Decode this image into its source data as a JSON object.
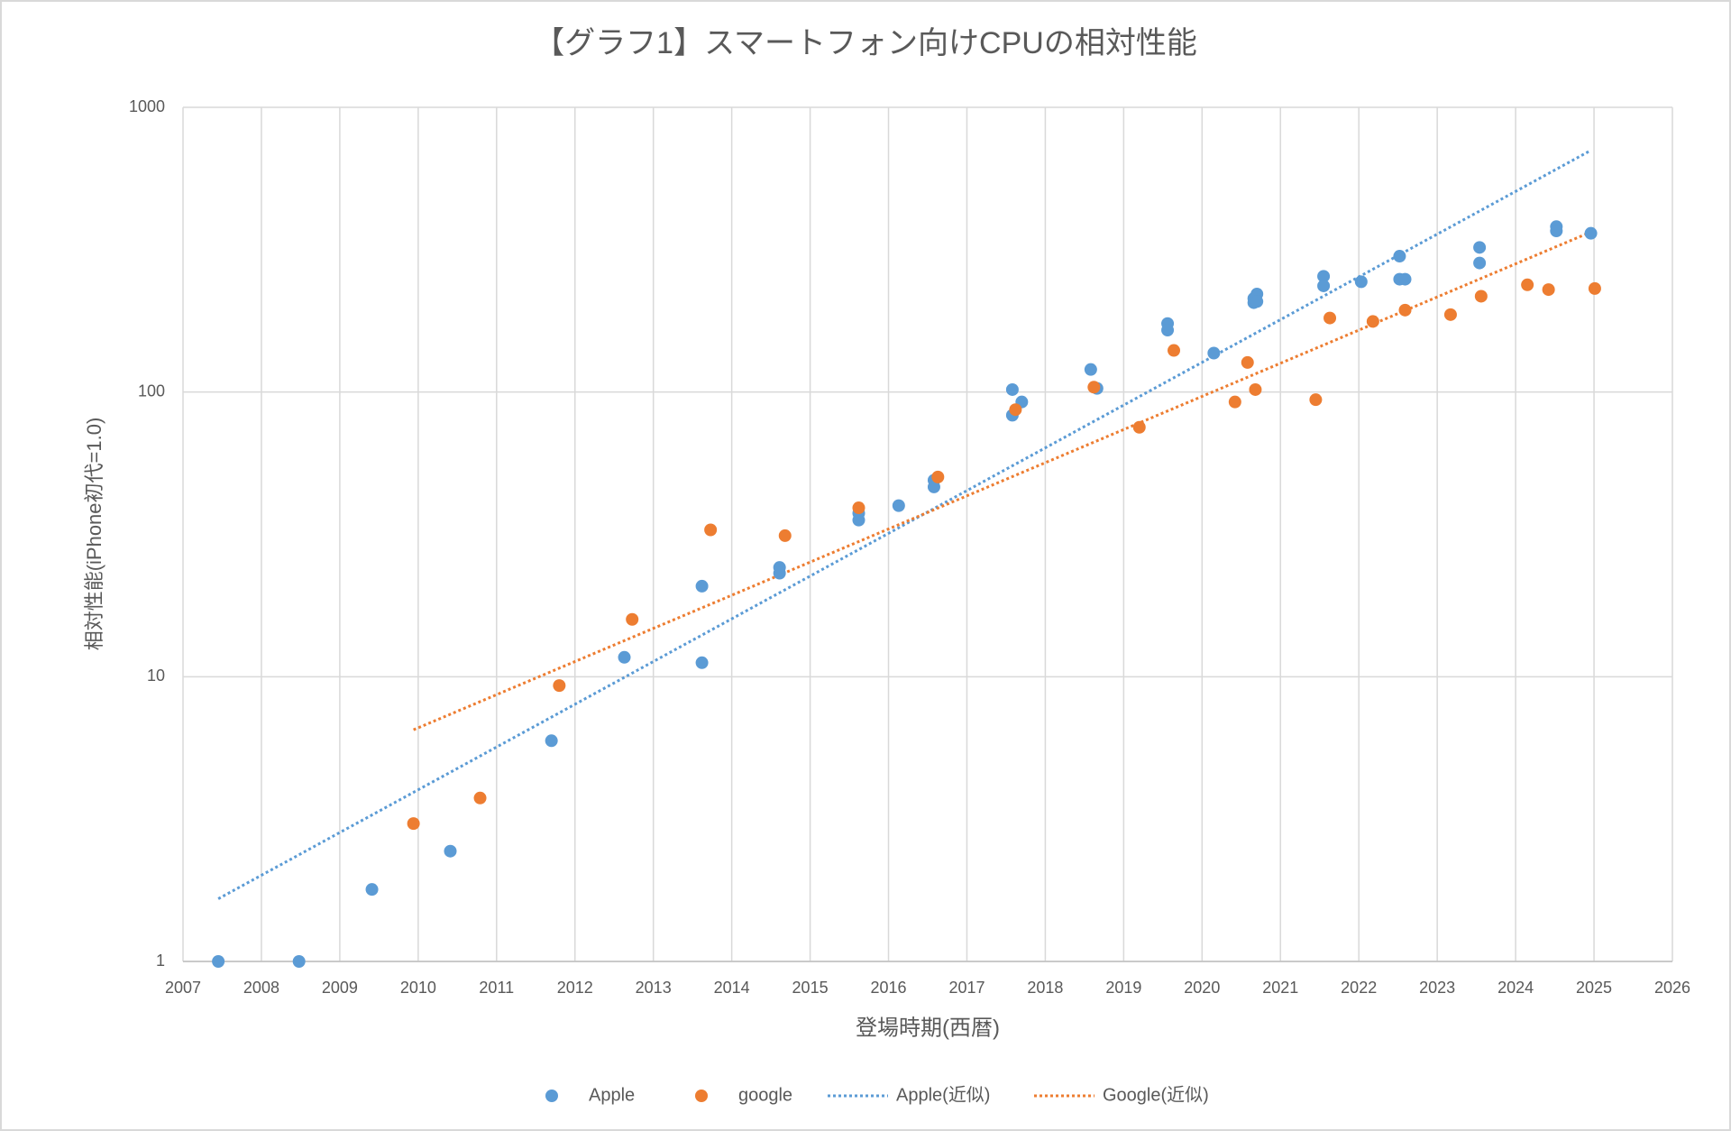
{
  "chart_data": {
    "type": "scatter",
    "title": "【グラフ1】スマートフォン向けCPUの相対性能",
    "x_label": "登場時期(西暦)",
    "y_label": "相対性能(iPhone初代=1.0)",
    "xlim": [
      2007,
      2026
    ],
    "xticks": [
      2007,
      2008,
      2009,
      2010,
      2011,
      2012,
      2013,
      2014,
      2015,
      2016,
      2017,
      2018,
      2019,
      2020,
      2021,
      2022,
      2023,
      2024,
      2025,
      2026
    ],
    "ylim": [
      1,
      1000
    ],
    "yticks": [
      1,
      10,
      100,
      1000
    ],
    "log_y": true,
    "grid": true,
    "legend": "bottom",
    "series": [
      {
        "name": "Apple",
        "type": "scatter",
        "color": "#5b9bd5",
        "x": [
          2007.45,
          2008.48,
          2009.41,
          2010.41,
          2011.7,
          2012.63,
          2013.62,
          2013.62,
          2014.61,
          2014.61,
          2015.62,
          2015.62,
          2016.13,
          2016.58,
          2016.58,
          2017.58,
          2017.58,
          2017.7,
          2018.58,
          2018.66,
          2019.56,
          2019.56,
          2020.15,
          2020.66,
          2020.66,
          2020.7,
          2020.7,
          2021.55,
          2021.55,
          2022.03,
          2022.52,
          2022.52,
          2022.59,
          2023.54,
          2023.54,
          2024.52,
          2024.52,
          2024.96
        ],
        "values": [
          1,
          1,
          1.79,
          2.44,
          5.96,
          11.7,
          20.8,
          11.2,
          24.2,
          23.1,
          37.5,
          35.5,
          39.9,
          49,
          46.4,
          102,
          82.9,
          92.3,
          120,
          103,
          174,
          165,
          137,
          213,
          206,
          221,
          208,
          255,
          236,
          244,
          300,
          249,
          249,
          322,
          284,
          381,
          368,
          361
        ]
      },
      {
        "name": "google",
        "type": "scatter",
        "color": "#ed7d31",
        "x": [
          2009.94,
          2010.79,
          2011.8,
          2012.73,
          2013.73,
          2014.68,
          2015.62,
          2016.63,
          2017.62,
          2018.62,
          2019.2,
          2019.64,
          2020.42,
          2020.58,
          2020.68,
          2021.45,
          2021.63,
          2022.18,
          2022.59,
          2023.17,
          2023.56,
          2024.15,
          2024.42,
          2025.01
        ],
        "values": [
          3.05,
          3.75,
          9.31,
          15.9,
          32.8,
          31.3,
          39.2,
          50.3,
          86.7,
          104,
          75.2,
          140,
          92.3,
          127,
          102,
          94,
          182,
          177,
          194,
          187,
          217,
          238,
          229,
          231
        ]
      },
      {
        "name": "Apple(近似)",
        "type": "line",
        "dash": "dotted",
        "color": "#5b9bd5",
        "x": [
          2007.45,
          2024.96
        ],
        "values": [
          1.66,
          706
        ]
      },
      {
        "name": "Google(近似)",
        "type": "line",
        "dash": "dotted",
        "color": "#ed7d31",
        "x": [
          2009.94,
          2024.89
        ],
        "values": [
          6.51,
          358
        ]
      }
    ]
  }
}
